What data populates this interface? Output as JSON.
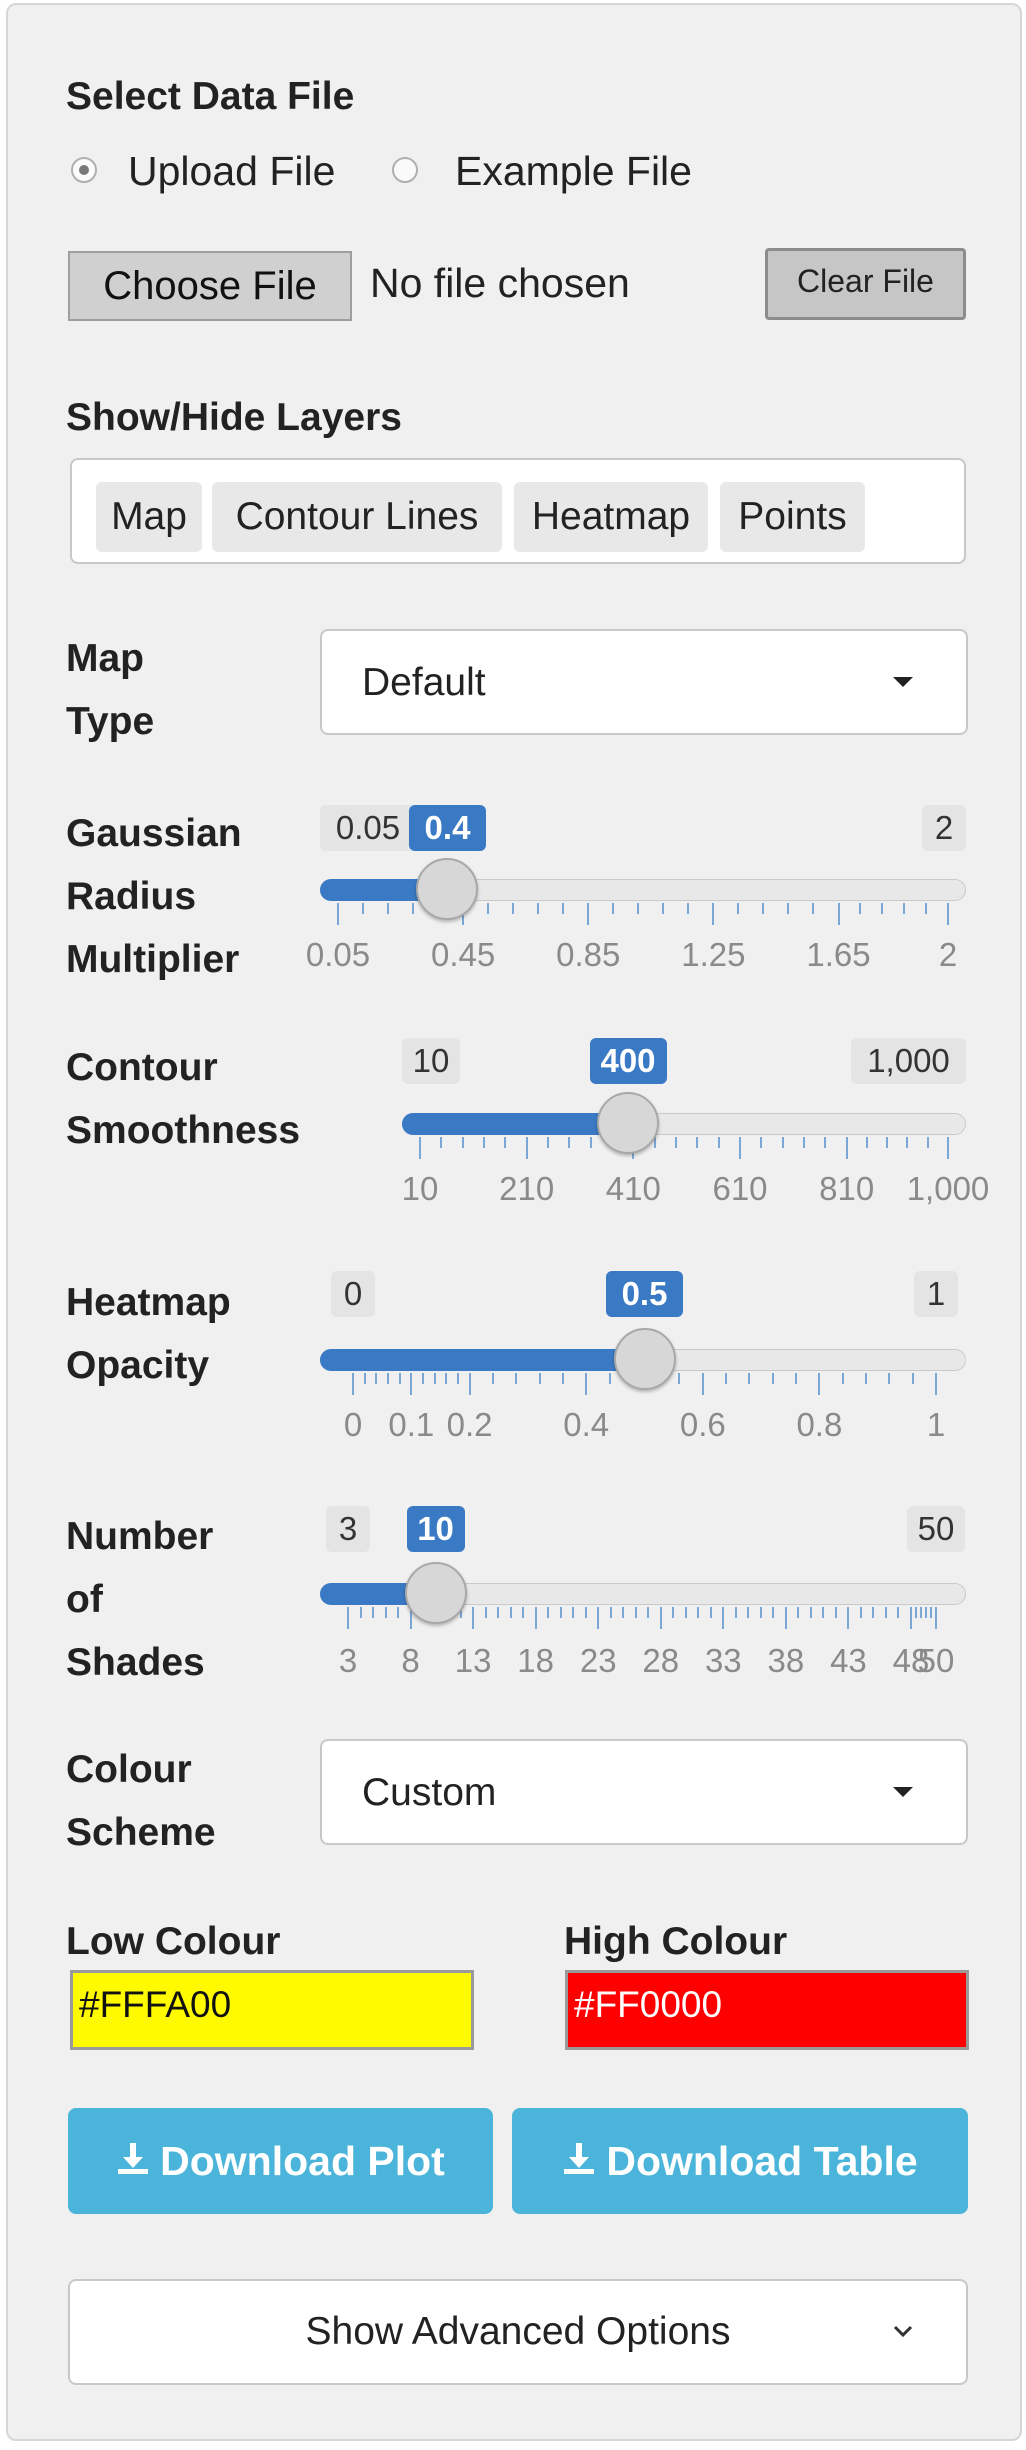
{
  "file_section": {
    "title": "Select Data File",
    "options": [
      "Upload File",
      "Example File"
    ],
    "selected": "Upload File",
    "choose_label": "Choose File",
    "status_text": "No file chosen",
    "clear_label": "Clear File"
  },
  "layers": {
    "title": "Show/Hide Layers",
    "items": [
      "Map",
      "Contour Lines",
      "Heatmap",
      "Points"
    ]
  },
  "map_type": {
    "label_line1": "Map",
    "label_line2": "Type",
    "value": "Default"
  },
  "sliders": [
    {
      "label_lines": [
        "Gaussian",
        "Radius",
        "Multiplier"
      ],
      "min_label": "0.05",
      "max_label": "2",
      "value_label": "0.4",
      "min": 0.05,
      "max": 2,
      "value": 0.4,
      "tick_labels": [
        "0.05",
        "0.45",
        "0.85",
        "1.25",
        "1.65",
        "2"
      ]
    },
    {
      "label_lines": [
        "Contour",
        "Smoothness"
      ],
      "min_label": "10",
      "max_label": "1,000",
      "value_label": "400",
      "min": 10,
      "max": 1000,
      "value": 400,
      "tick_labels": [
        "10",
        "210",
        "410",
        "610",
        "810",
        "1,000"
      ]
    },
    {
      "label_lines": [
        "Heatmap",
        "Opacity"
      ],
      "min_label": "0",
      "max_label": "1",
      "value_label": "0.5",
      "min": 0,
      "max": 1,
      "value": 0.5,
      "tick_labels": [
        "0",
        "0.1",
        "0.2",
        "0.4",
        "0.6",
        "0.8",
        "1"
      ]
    },
    {
      "label_lines": [
        "Number",
        "of",
        "Shades"
      ],
      "min_label": "3",
      "max_label": "50",
      "value_label": "10",
      "min": 3,
      "max": 50,
      "value": 10,
      "tick_labels": [
        "3",
        "8",
        "13",
        "18",
        "23",
        "28",
        "33",
        "38",
        "43",
        "48",
        "50"
      ]
    }
  ],
  "colour_scheme": {
    "label_line1": "Colour",
    "label_line2": "Scheme",
    "value": "Custom"
  },
  "low_colour": {
    "label": "Low Colour",
    "value": "#FFFA00",
    "swatch": "#FFFA00",
    "text_color": "#111111"
  },
  "high_colour": {
    "label": "High Colour",
    "value": "#FF0000",
    "swatch": "#FF0000",
    "text_color": "#FFFFFF"
  },
  "download_plot_label": "Download Plot",
  "download_table_label": "Download Table",
  "download_icon": "download-icon",
  "advanced_label": "Show Advanced Options",
  "advanced_icon": "chevron-down-icon",
  "accent_color": "#3a79c4",
  "button_color": "#4bb4da"
}
